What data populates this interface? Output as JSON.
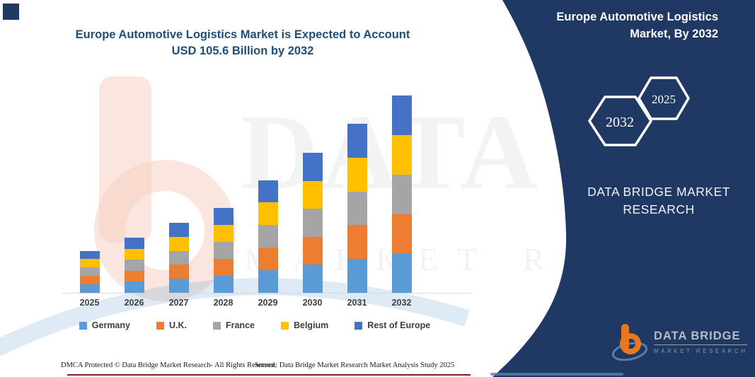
{
  "page": {
    "title_line1": "Europe Automotive Logistics Market is Expected to Account",
    "title_line2": "USD 105.6 Billion by 2032"
  },
  "chart_data": {
    "type": "bar",
    "stacked": true,
    "title": "Europe Automotive Logistics Market is Expected to Account USD 105.6 Billion by 2032",
    "unit": "USD Billion",
    "categories": [
      "2025",
      "2026",
      "2027",
      "2028",
      "2029",
      "2030",
      "2031",
      "2032"
    ],
    "series": [
      {
        "name": "Germany",
        "color": "#5B9BD5",
        "values": [
          4.5,
          5.9,
          7.5,
          9.1,
          12.1,
          15.0,
          18.1,
          21.1
        ]
      },
      {
        "name": "U.K.",
        "color": "#ED7D31",
        "values": [
          4.5,
          5.9,
          7.5,
          9.1,
          12.1,
          15.0,
          18.1,
          21.1
        ]
      },
      {
        "name": "France",
        "color": "#A5A5A5",
        "values": [
          4.5,
          5.9,
          7.5,
          9.1,
          12.1,
          15.0,
          18.1,
          21.1
        ]
      },
      {
        "name": "Belgium",
        "color": "#FFC000",
        "values": [
          4.5,
          5.9,
          7.5,
          9.1,
          12.1,
          15.0,
          18.1,
          21.1
        ]
      },
      {
        "name": "Rest of Europe",
        "color": "#4472C4",
        "values": [
          4.5,
          5.9,
          7.5,
          9.1,
          12.1,
          15.0,
          18.1,
          21.2
        ]
      }
    ],
    "totals": [
      22.5,
      29.5,
      37.5,
      45.5,
      60.5,
      75.0,
      90.5,
      105.6
    ],
    "ylim": [
      0,
      110
    ],
    "grid": false,
    "legend_position": "bottom"
  },
  "side_panel": {
    "title": "Europe Automotive Logistics Market, By 2032",
    "hexagons": [
      {
        "label": "2032"
      },
      {
        "label": "2025"
      }
    ],
    "brand_name": "DATA BRIDGE MARKET RESEARCH",
    "logo": {
      "text": "DATA BRIDGE",
      "subtext": "MARKET RESEARCH"
    },
    "bg_color": "#1F3864"
  },
  "footer": {
    "left": "DMCA Protected © Data Bridge Market Research-  All Rights Reserved.",
    "right": "Source: Data Bridge Market Research  Market Analysis Study 2025"
  },
  "watermark": {
    "text_primary": "DATA BRIDGE",
    "text_secondary": "MARKET RESEARCH"
  },
  "colors": {
    "panel_navy": "#1F3864",
    "title_blue": "#1F4E79",
    "label_gray": "#404040",
    "axis_gray": "#D9D9D9",
    "bottom_rule_maroon": "#7E1F1F",
    "logo_orange": "#E87722"
  }
}
